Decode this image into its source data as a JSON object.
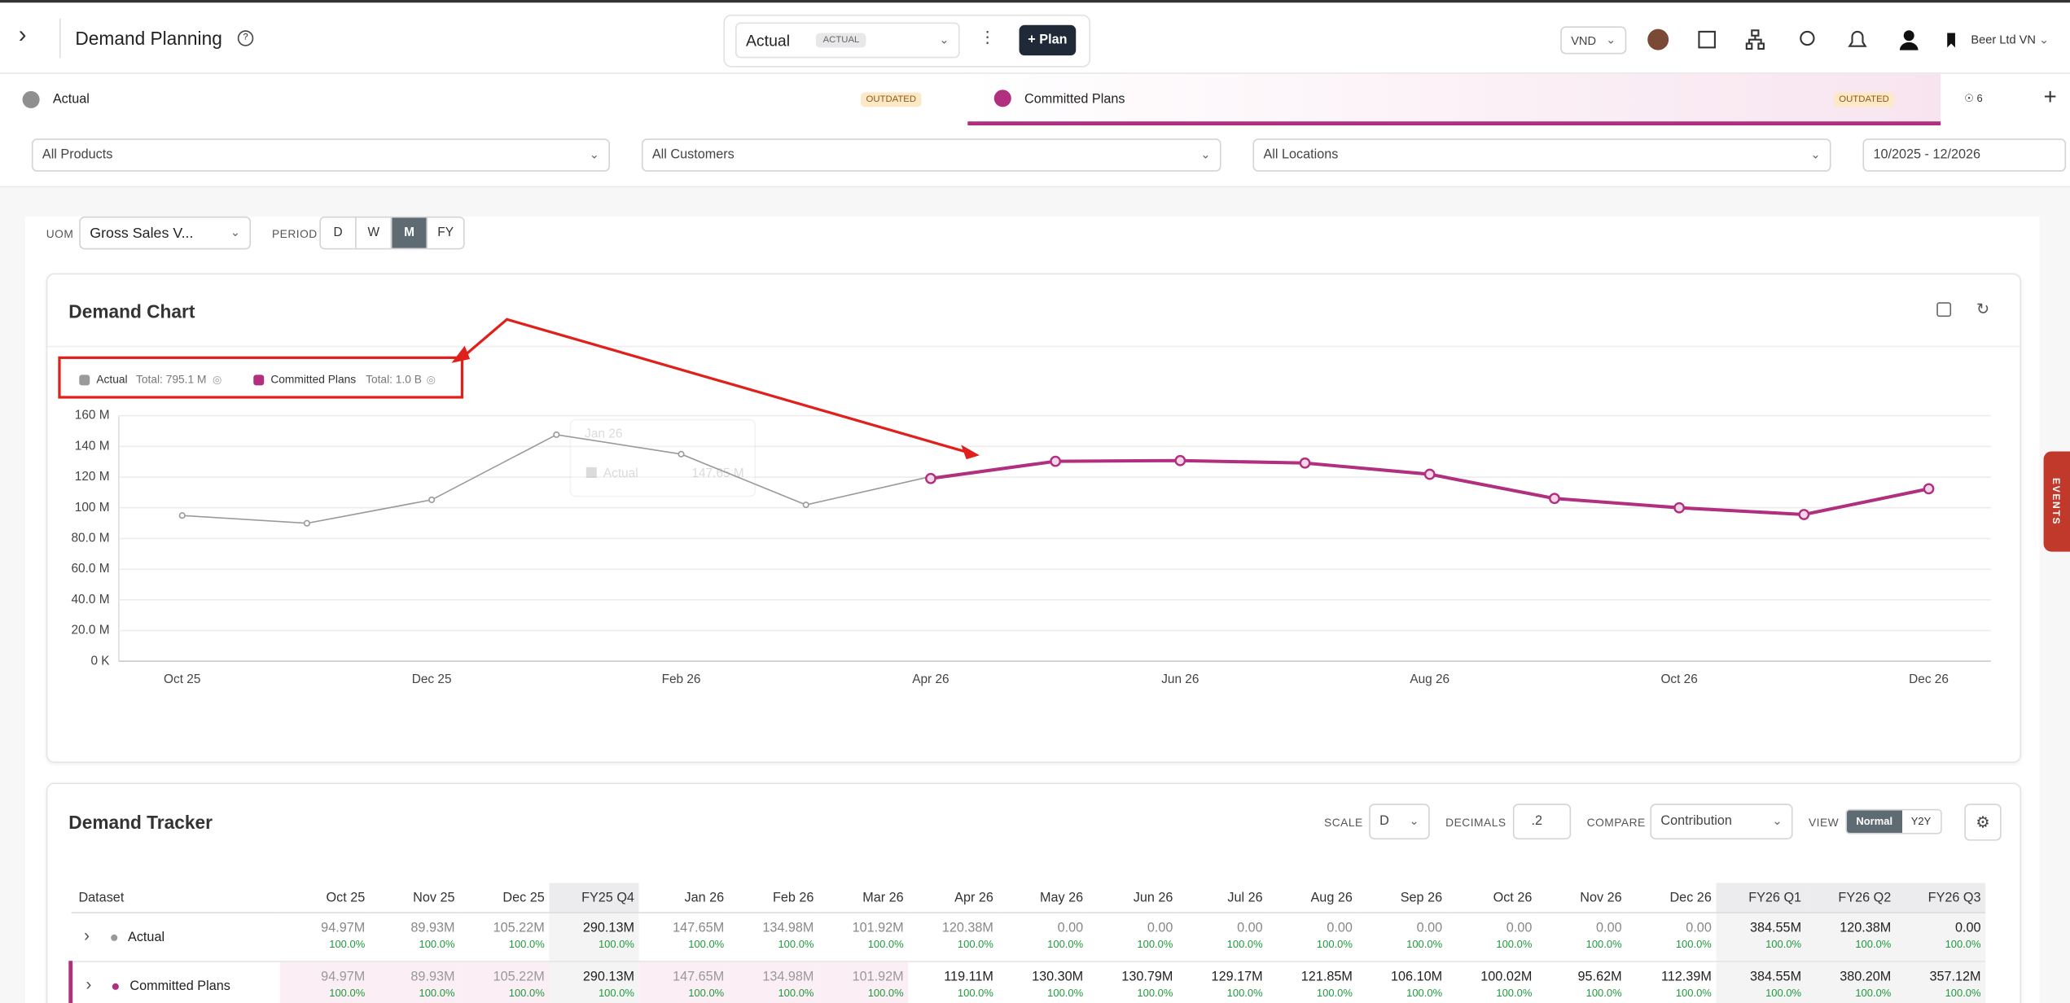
{
  "header": {
    "title": "Demand Planning",
    "scenario": "Actual",
    "scenario_badge": "ACTUAL",
    "plan_button": "+ Plan",
    "currency": "VND",
    "company": "Beer Ltd VN"
  },
  "tabs": [
    {
      "label": "Actual",
      "status": "OUTDATED"
    },
    {
      "label": "Committed Plans",
      "status": "OUTDATED"
    }
  ],
  "hidden_count": "6",
  "filters": {
    "products": "All Products",
    "customers": "All Customers",
    "locations": "All Locations",
    "date_range": "10/2025 - 12/2026"
  },
  "controls": {
    "uom_label": "UOM",
    "uom": "Gross Sales V...",
    "period_label": "PERIOD",
    "periods": [
      "D",
      "W",
      "M",
      "FY"
    ],
    "active_period": "M"
  },
  "chart_card": {
    "title": "Demand Chart"
  },
  "chart_data": {
    "type": "line",
    "categories": [
      "Oct 25",
      null,
      "Dec 25",
      null,
      "Feb 26",
      null,
      "Apr 26",
      null,
      "Jun 26",
      null,
      "Aug 26",
      null,
      "Oct 26",
      null,
      "Dec 26"
    ],
    "series": [
      {
        "name": "Actual",
        "total": "Total: 795.1 M",
        "color": "#9a9a9a",
        "values": [
          94.97,
          89.93,
          105.22,
          147.65,
          134.98,
          101.92,
          120.38,
          null,
          null,
          null,
          null,
          null,
          null,
          null,
          null
        ]
      },
      {
        "name": "Committed Plans",
        "total": "Total: 1.0 B",
        "color": "#b0307f",
        "values": [
          null,
          null,
          null,
          null,
          null,
          null,
          119.11,
          130.3,
          130.79,
          129.17,
          121.85,
          106.1,
          100.02,
          95.62,
          112.39
        ]
      }
    ],
    "ylim": [
      0,
      160
    ],
    "yticks": [
      {
        "value": 0,
        "label": "0 K"
      },
      {
        "value": 20,
        "label": "20.0 M"
      },
      {
        "value": 40,
        "label": "40.0 M"
      },
      {
        "value": 60,
        "label": "60.0 M"
      },
      {
        "value": 80,
        "label": "80.0 M"
      },
      {
        "value": 100,
        "label": "100 M"
      },
      {
        "value": 120,
        "label": "120 M"
      },
      {
        "value": 140,
        "label": "140 M"
      },
      {
        "value": 160,
        "label": "160 M"
      }
    ],
    "grid": true,
    "tooltip": {
      "title": "Jan 26",
      "series": "Actual",
      "value_label": "147.65 M"
    }
  },
  "tracker": {
    "title": "Demand Tracker",
    "scale_label": "SCALE",
    "scale": "D",
    "decimals_label": "DECIMALS",
    "decimals": ".2",
    "compare_label": "COMPARE",
    "compare": "Contribution",
    "view_label": "VIEW",
    "views": [
      "Normal",
      "Y2Y"
    ],
    "columns": [
      "Dataset",
      "Oct 25",
      "Nov 25",
      "Dec 25",
      "FY25 Q4",
      "Jan 26",
      "Feb 26",
      "Mar 26",
      "Apr 26",
      "May 26",
      "Jun 26",
      "Jul 26",
      "Aug 26",
      "Sep 26",
      "Oct 26",
      "Nov 26",
      "Dec 26",
      "FY26 Q1",
      "FY26 Q2",
      "FY26 Q3"
    ],
    "rows": [
      {
        "name": "Actual",
        "cells": [
          [
            "94.97M",
            "100.0%"
          ],
          [
            "89.93M",
            "100.0%"
          ],
          [
            "105.22M",
            "100.0%"
          ],
          [
            "290.13M",
            "100.0%"
          ],
          [
            "147.65M",
            "100.0%"
          ],
          [
            "134.98M",
            "100.0%"
          ],
          [
            "101.92M",
            "100.0%"
          ],
          [
            "120.38M",
            "100.0%"
          ],
          [
            "0.00",
            "100.0%"
          ],
          [
            "0.00",
            "100.0%"
          ],
          [
            "0.00",
            "100.0%"
          ],
          [
            "0.00",
            "100.0%"
          ],
          [
            "0.00",
            "100.0%"
          ],
          [
            "0.00",
            "100.0%"
          ],
          [
            "0.00",
            "100.0%"
          ],
          [
            "0.00",
            "100.0%"
          ],
          [
            "384.55M",
            "100.0%"
          ],
          [
            "120.38M",
            "100.0%"
          ],
          [
            "0.00",
            "100.0%"
          ]
        ]
      },
      {
        "name": "Committed Plans",
        "cells": [
          [
            "94.97M",
            "100.0%"
          ],
          [
            "89.93M",
            "100.0%"
          ],
          [
            "105.22M",
            "100.0%"
          ],
          [
            "290.13M",
            "100.0%"
          ],
          [
            "147.65M",
            "100.0%"
          ],
          [
            "134.98M",
            "100.0%"
          ],
          [
            "101.92M",
            "100.0%"
          ],
          [
            "119.11M",
            "100.0%"
          ],
          [
            "130.30M",
            "100.0%"
          ],
          [
            "130.79M",
            "100.0%"
          ],
          [
            "129.17M",
            "100.0%"
          ],
          [
            "121.85M",
            "100.0%"
          ],
          [
            "106.10M",
            "100.0%"
          ],
          [
            "100.02M",
            "100.0%"
          ],
          [
            "95.62M",
            "100.0%"
          ],
          [
            "112.39M",
            "100.0%"
          ],
          [
            "384.55M",
            "100.0%"
          ],
          [
            "380.20M",
            "100.0%"
          ],
          [
            "357.12M",
            "100.0%"
          ]
        ]
      }
    ]
  },
  "side_tab": "EVENTS"
}
